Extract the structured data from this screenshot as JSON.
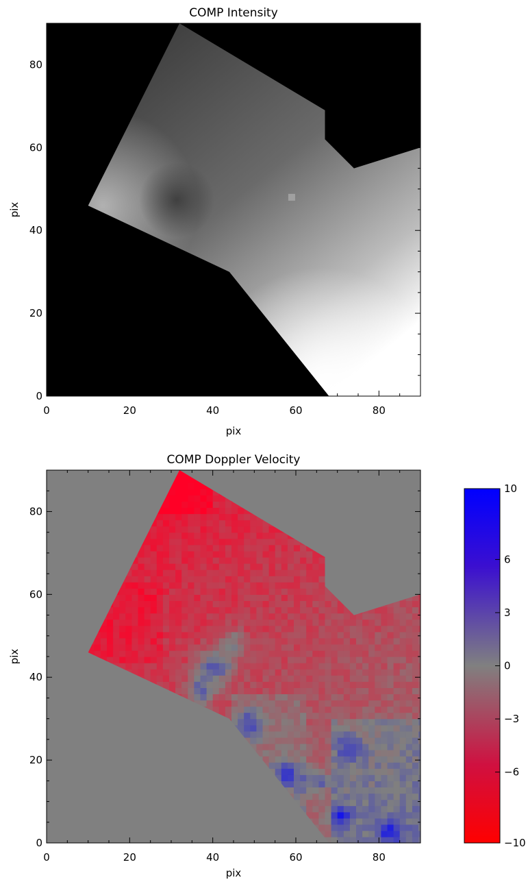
{
  "chart_data": [
    {
      "type": "heatmap",
      "title": "COMP Intensity",
      "xlabel": "pix",
      "ylabel": "pix",
      "xlim": [
        0,
        90
      ],
      "ylim": [
        0,
        90
      ],
      "x_ticks": [
        "0",
        "20",
        "40",
        "60",
        "80"
      ],
      "y_ticks": [
        "0",
        "20",
        "40",
        "60",
        "80"
      ],
      "colormap": [
        "#000000",
        "#ffffff"
      ],
      "background_color": "#000000",
      "field_boundary": [
        [
          10,
          46
        ],
        [
          32,
          90
        ],
        [
          67,
          69
        ],
        [
          67,
          62
        ],
        [
          74,
          55
        ],
        [
          90,
          60
        ],
        [
          90,
          0
        ],
        [
          68,
          0
        ],
        [
          44,
          30
        ]
      ],
      "features": [
        {
          "label": "",
          "x": 32,
          "y": 48,
          "value": "dark spot"
        },
        {
          "label": "",
          "x": 59,
          "y": 48,
          "value": "bright point"
        }
      ]
    },
    {
      "type": "heatmap",
      "title": "COMP Doppler Velocity",
      "xlabel": "pix",
      "ylabel": "pix",
      "xlim": [
        0,
        90
      ],
      "ylim": [
        0,
        90
      ],
      "x_ticks": [
        "0",
        "20",
        "40",
        "60",
        "80"
      ],
      "y_ticks": [
        "0",
        "20",
        "40",
        "60",
        "80"
      ],
      "background_color": "#808080",
      "colorbar": {
        "range": [
          -10,
          10
        ],
        "ticks": [
          "10",
          "6",
          "3",
          "0",
          "−3",
          "−6",
          "−10"
        ],
        "tick_values": [
          10,
          6,
          3,
          0,
          -3,
          -6,
          -10
        ],
        "colors": {
          "max": "#0000ff",
          "mid": "#808080",
          "min": "#ff0000"
        }
      }
    }
  ]
}
